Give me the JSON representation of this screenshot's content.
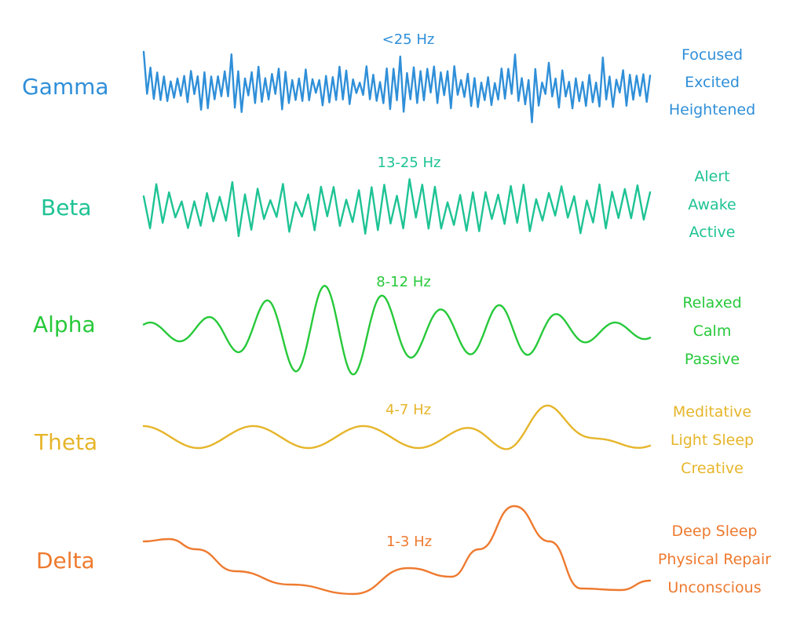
{
  "bands": [
    {
      "name": "Gamma",
      "frequency": "<25 Hz",
      "states": [
        "Focused",
        "Excited",
        "Heightened"
      ],
      "color": "#2f8fd8"
    },
    {
      "name": "Beta",
      "frequency": "13-25 Hz",
      "states": [
        "Alert",
        "Awake",
        "Active"
      ],
      "color": "#1ec394"
    },
    {
      "name": "Alpha",
      "frequency": "8-12 Hz",
      "states": [
        "Relaxed",
        "Calm",
        "Passive"
      ],
      "color": "#27c93a"
    },
    {
      "name": "Theta",
      "frequency": "4-7 Hz",
      "states": [
        "Meditative",
        "Light Sleep",
        "Creative"
      ],
      "color": "#e6b52a"
    },
    {
      "name": "Delta",
      "frequency": "1-3 Hz",
      "states": [
        "Deep Sleep",
        "Physical Repair",
        "Unconscious"
      ],
      "color": "#ee7a2f"
    }
  ]
}
